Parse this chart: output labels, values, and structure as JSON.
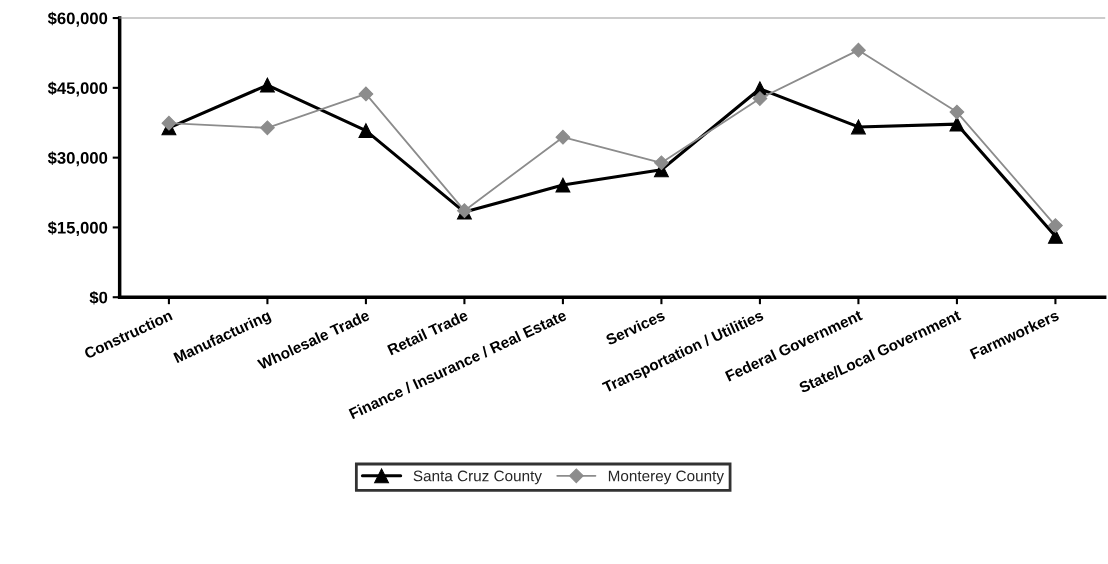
{
  "chart_data": {
    "type": "line",
    "categories": [
      "Construction",
      "Manufacturing",
      "Wholesale Trade",
      "Retail Trade",
      "Finance / Insurance / Real Estate",
      "Services",
      "Transportation / Utilities",
      "Federal Government",
      "State/Local Government",
      "Farmworkers"
    ],
    "series": [
      {
        "name": "Santa Cruz County",
        "color": "#000000",
        "marker": "triangle",
        "values": [
          36400,
          45600,
          35800,
          18300,
          24100,
          27400,
          44800,
          36600,
          37200,
          13100
        ]
      },
      {
        "name": "Monterey County",
        "color": "#8c8c8c",
        "marker": "diamond",
        "values": [
          37400,
          36400,
          43700,
          18600,
          34400,
          28900,
          42700,
          53100,
          39800,
          15400
        ]
      }
    ],
    "ylim": [
      0,
      60000
    ],
    "yticks": [
      {
        "value": 0,
        "label": "$0"
      },
      {
        "value": 15000,
        "label": "$15,000"
      },
      {
        "value": 30000,
        "label": "$30,000"
      },
      {
        "value": 45000,
        "label": "$45,000"
      },
      {
        "value": 60000,
        "label": "$60,000"
      }
    ],
    "grid": false,
    "legend": "bottom"
  }
}
